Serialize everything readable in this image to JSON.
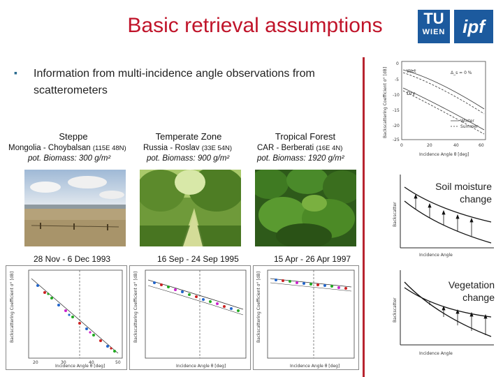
{
  "slide": {
    "title": "Basic retrieval assumptions",
    "bullet": "Information from multi-incidence angle observations from scatterometers"
  },
  "logos": {
    "tu": {
      "line1": "TU",
      "line2": "WIEN"
    },
    "ipf": "ipf"
  },
  "sites": [
    {
      "name": "Steppe",
      "location": "Mongolia - Choybalsan",
      "coords": "(115E 48N)",
      "biomass": "pot. Biomass: 300 g/m²",
      "date": "28 Nov - 6 Dec 1993"
    },
    {
      "name": "Temperate Zone",
      "location": "Russia - Roslav",
      "coords": "(33E 54N)",
      "biomass": "pot. Biomass: 900 g/m²",
      "date": "16 Sep - 24 Sep 1995"
    },
    {
      "name": "Tropical Forest",
      "location": "CAR - Berberati",
      "coords": "(16E 4N)",
      "biomass": "pot. Biomass: 1920 g/m²",
      "date": "15 Apr - 26 Apr 1997"
    }
  ],
  "side": {
    "soil": {
      "line1": "Soil moisture",
      "line2": "change"
    },
    "veg": {
      "line1": "Vegetation",
      "line2": "change"
    },
    "axis_y": "Backscatter",
    "axis_x": "Incidence Angle"
  },
  "top_plot": {
    "ylabel": "Backscattering Coefficient σ° [dB]",
    "xlabel": "Incidence Angle θ [deg]",
    "wet": "Wet",
    "dry": "Dry",
    "annotation": "Δ_s = 0 %",
    "legend_winter": "Winter",
    "legend_summer": "Summer",
    "yticks": [
      "0",
      "-5",
      "-10",
      "-15",
      "-20",
      "-25"
    ],
    "xticks": [
      "0",
      "20",
      "40",
      "60"
    ]
  },
  "scatter_plots": {
    "ylabel": "Backscattering Coefficient σ° [dB]",
    "xlabel": "Incidence Angle θ [deg]",
    "xticks": [
      "20",
      "30",
      "40",
      "50"
    ]
  }
}
